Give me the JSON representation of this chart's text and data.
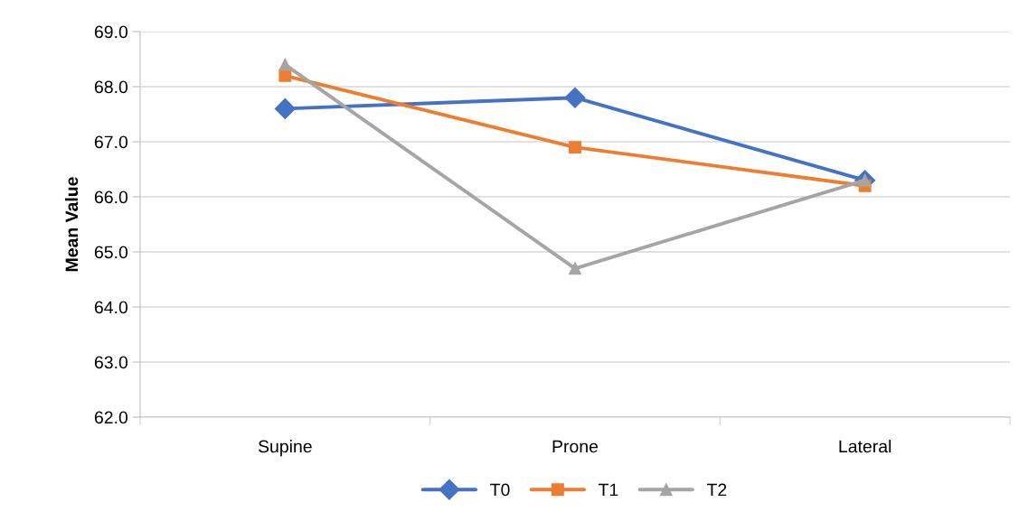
{
  "chart_data": {
    "type": "line",
    "ylabel": "Mean Value",
    "categories": [
      "Supine",
      "Prone",
      "Lateral"
    ],
    "series": [
      {
        "name": "T0",
        "color": "#4472c4",
        "marker": "diamond",
        "values": [
          67.6,
          67.8,
          66.3
        ]
      },
      {
        "name": "T1",
        "color": "#ed7d31",
        "marker": "square",
        "values": [
          68.2,
          66.9,
          66.2
        ]
      },
      {
        "name": "T2",
        "color": "#a5a5a5",
        "marker": "triangle",
        "values": [
          68.4,
          64.7,
          66.3
        ]
      }
    ],
    "ylim": [
      62,
      69
    ],
    "yticks": [
      {
        "value": 62,
        "label": "62.0"
      },
      {
        "value": 63,
        "label": "63.0"
      },
      {
        "value": 64,
        "label": "64.0"
      },
      {
        "value": 65,
        "label": "65.0"
      },
      {
        "value": 66,
        "label": "66.0"
      },
      {
        "value": 67,
        "label": "67.0"
      },
      {
        "value": 68,
        "label": "68.0"
      },
      {
        "value": 69,
        "label": "69.0"
      }
    ],
    "grid": "y",
    "legend": "bottom",
    "line_style": "solid"
  }
}
